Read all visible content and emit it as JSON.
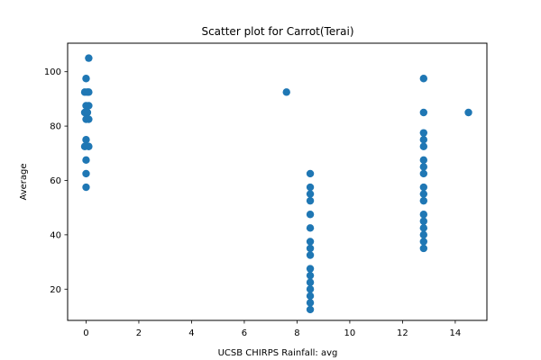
{
  "chart_data": {
    "type": "scatter",
    "title": "Scatter plot for Carrot(Terai)",
    "xlabel": "UCSB CHIRPS Rainfall: avg",
    "ylabel": "Average",
    "xlim": [
      -0.7,
      15.2
    ],
    "ylim": [
      8.5,
      110.5
    ],
    "xticks": [
      0,
      2,
      4,
      6,
      8,
      10,
      12,
      14
    ],
    "yticks": [
      20,
      40,
      60,
      80,
      100
    ],
    "grid": false,
    "legend": "none",
    "color": "#1f77b4",
    "series": [
      {
        "points": [
          [
            0.1,
            105
          ],
          [
            0.0,
            97.5
          ],
          [
            -0.05,
            92.5
          ],
          [
            0.05,
            92.5
          ],
          [
            0.1,
            92.5
          ],
          [
            0.0,
            87.5
          ],
          [
            0.1,
            87.5
          ],
          [
            -0.05,
            85
          ],
          [
            0.05,
            85
          ],
          [
            0.0,
            82.5
          ],
          [
            0.1,
            82.5
          ],
          [
            0.0,
            75
          ],
          [
            -0.05,
            72.5
          ],
          [
            0.1,
            72.5
          ],
          [
            0.0,
            67.5
          ],
          [
            0.0,
            62.5
          ],
          [
            0.0,
            57.5
          ],
          [
            7.6,
            92.5
          ],
          [
            8.5,
            62.5
          ],
          [
            8.5,
            57.5
          ],
          [
            8.5,
            55
          ],
          [
            8.5,
            52.5
          ],
          [
            8.5,
            47.5
          ],
          [
            8.5,
            42.5
          ],
          [
            8.5,
            37.5
          ],
          [
            8.5,
            35
          ],
          [
            8.5,
            32.5
          ],
          [
            8.5,
            27.5
          ],
          [
            8.5,
            25
          ],
          [
            8.5,
            22.5
          ],
          [
            8.5,
            20
          ],
          [
            8.5,
            17.5
          ],
          [
            8.5,
            15
          ],
          [
            8.5,
            12.5
          ],
          [
            12.8,
            97.5
          ],
          [
            12.8,
            85
          ],
          [
            12.8,
            77.5
          ],
          [
            12.8,
            75
          ],
          [
            12.8,
            72.5
          ],
          [
            12.8,
            67.5
          ],
          [
            12.8,
            65
          ],
          [
            12.8,
            62.5
          ],
          [
            12.8,
            57.5
          ],
          [
            12.8,
            55
          ],
          [
            12.8,
            52.5
          ],
          [
            12.8,
            47.5
          ],
          [
            12.8,
            45
          ],
          [
            12.8,
            42.5
          ],
          [
            12.8,
            40
          ],
          [
            12.8,
            37.5
          ],
          [
            12.8,
            35
          ],
          [
            14.5,
            85
          ]
        ]
      }
    ]
  }
}
